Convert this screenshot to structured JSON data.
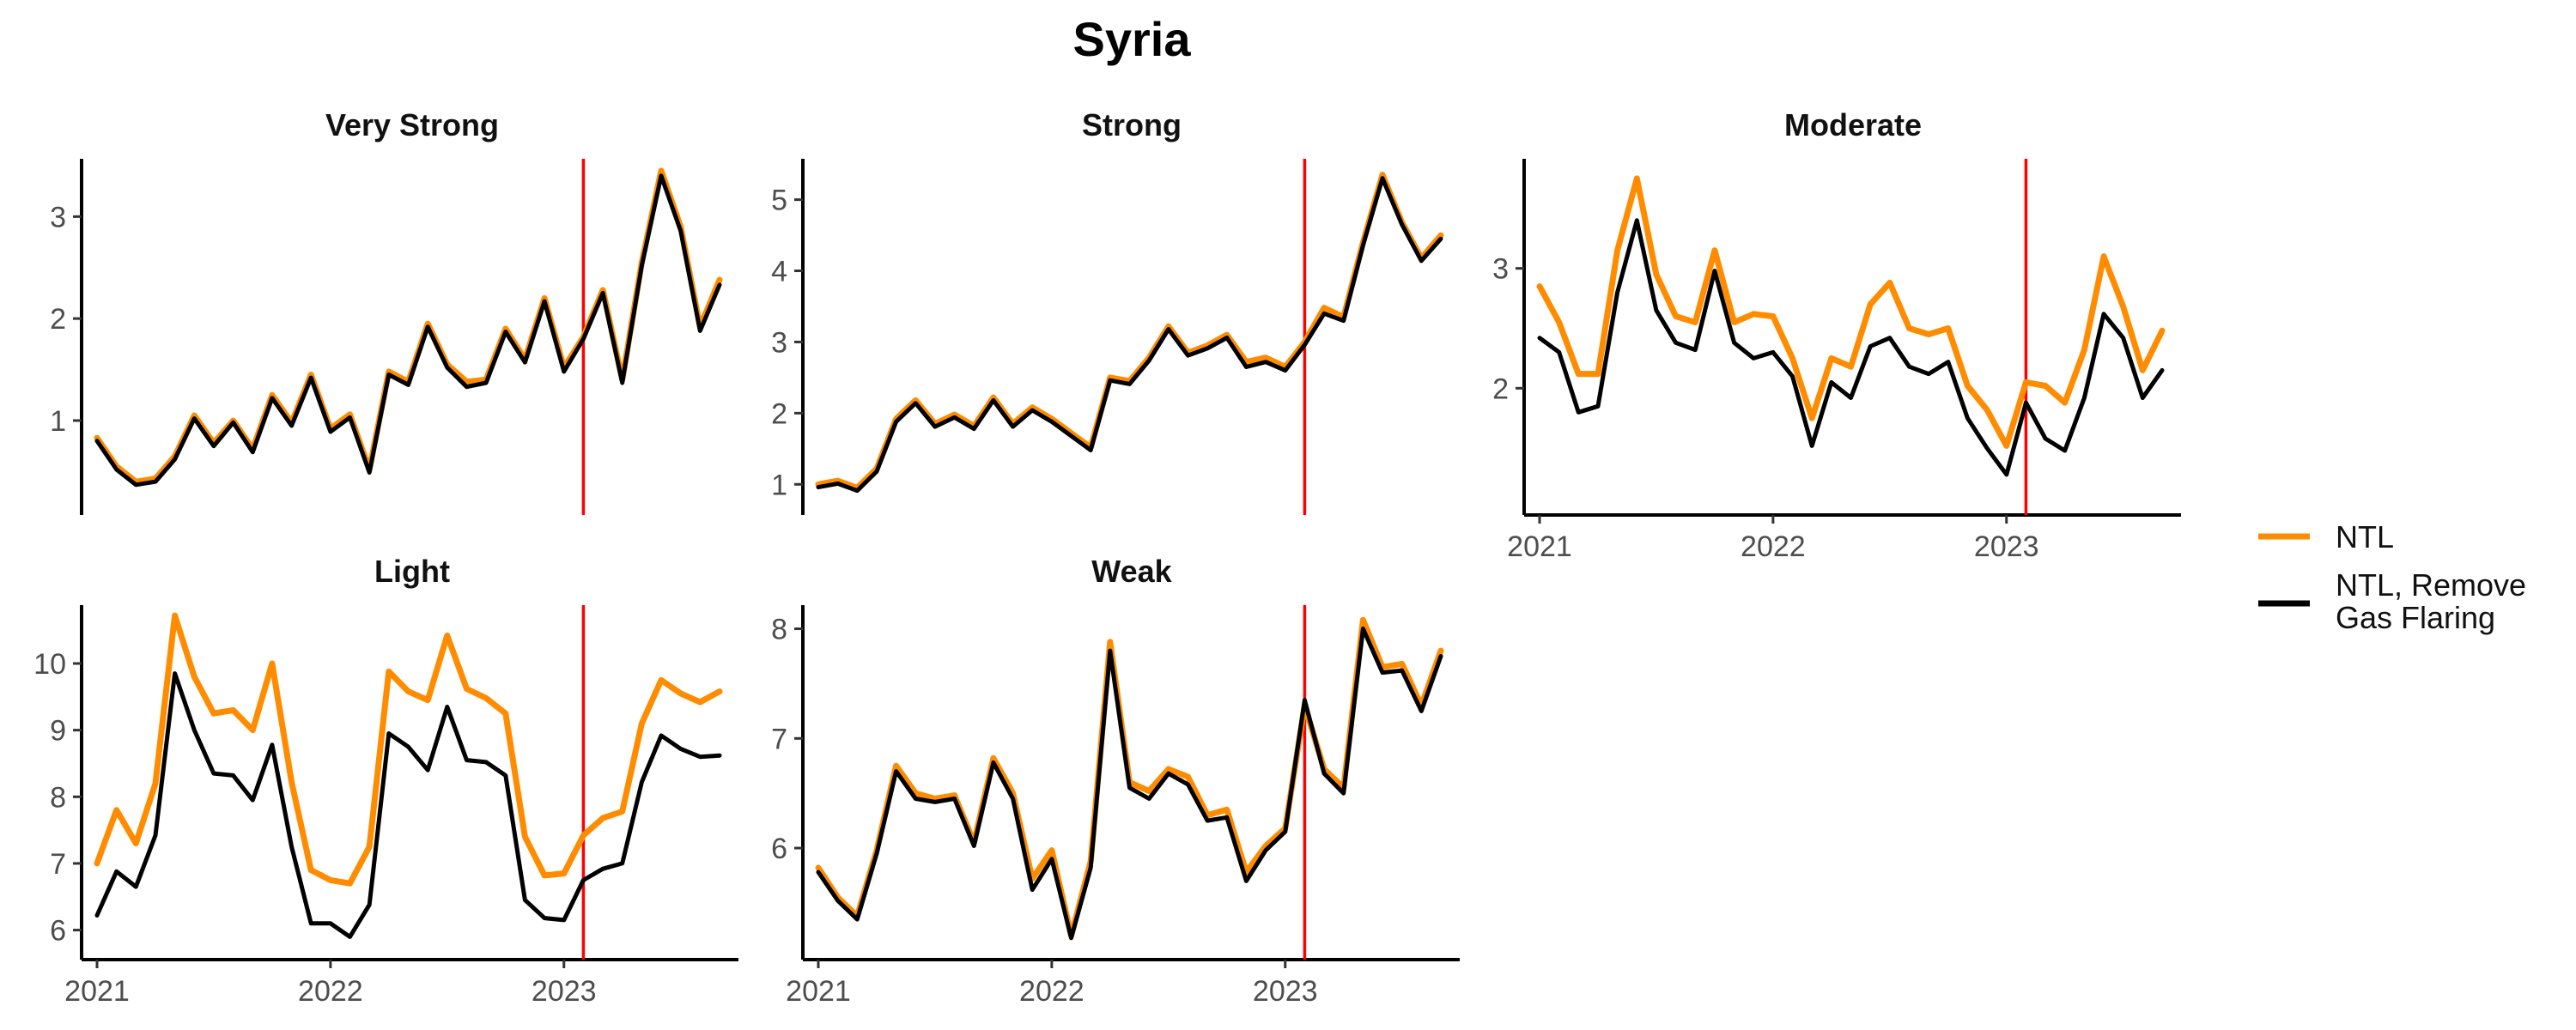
{
  "chart_data": {
    "title": "Syria",
    "type": "line",
    "facets": 5,
    "legend": {
      "position": "right",
      "entries": [
        {
          "label": "NTL",
          "color": "#FF8C00"
        },
        {
          "label_lines": [
            "NTL, Remove",
            "Gas Flaring"
          ],
          "color": "#000000"
        }
      ]
    },
    "reference_line": {
      "x": "2023-02",
      "color": "#FF0000"
    },
    "x": [
      "2021-01",
      "2021-02",
      "2021-03",
      "2021-04",
      "2021-05",
      "2021-06",
      "2021-07",
      "2021-08",
      "2021-09",
      "2021-10",
      "2021-11",
      "2021-12",
      "2022-01",
      "2022-02",
      "2022-03",
      "2022-04",
      "2022-05",
      "2022-06",
      "2022-07",
      "2022-08",
      "2022-09",
      "2022-10",
      "2022-11",
      "2022-12",
      "2023-01",
      "2023-02",
      "2023-03",
      "2023-04",
      "2023-05",
      "2023-06",
      "2023-07",
      "2023-08",
      "2023-09"
    ],
    "xticks": [
      "2021",
      "2022",
      "2023"
    ],
    "panels": [
      {
        "title": "Very Strong",
        "ylim": [
          0.2,
          3.55
        ],
        "yticks": [
          "1",
          "2",
          "3"
        ],
        "series": [
          {
            "name": "NTL",
            "color": "#FF8C00",
            "values": [
              0.83,
              0.55,
              0.4,
              0.43,
              0.65,
              1.05,
              0.78,
              1.0,
              0.72,
              1.25,
              0.98,
              1.45,
              0.92,
              1.06,
              0.52,
              1.48,
              1.38,
              1.95,
              1.55,
              1.38,
              1.4,
              1.9,
              1.6,
              2.2,
              1.52,
              1.82,
              2.28,
              1.4,
              2.55,
              3.45,
              2.9,
              1.92,
              2.38
            ]
          },
          {
            "name": "NTL, Remove Gas Flaring",
            "color": "#000000",
            "values": [
              0.8,
              0.52,
              0.37,
              0.4,
              0.62,
              1.02,
              0.75,
              0.98,
              0.69,
              1.22,
              0.95,
              1.42,
              0.89,
              1.03,
              0.49,
              1.45,
              1.35,
              1.92,
              1.52,
              1.33,
              1.37,
              1.87,
              1.57,
              2.17,
              1.48,
              1.8,
              2.25,
              1.37,
              2.52,
              3.4,
              2.86,
              1.88,
              2.33
            ]
          }
        ]
      },
      {
        "title": "Strong",
        "ylim": [
          0.75,
          5.55
        ],
        "yticks": [
          "1",
          "2",
          "3",
          "4",
          "5"
        ],
        "series": [
          {
            "name": "NTL",
            "color": "#FF8C00",
            "values": [
              1.0,
              1.05,
              0.95,
              1.22,
              1.92,
              2.18,
              1.85,
              1.98,
              1.82,
              2.22,
              1.85,
              2.08,
              1.92,
              1.72,
              1.52,
              2.5,
              2.45,
              2.78,
              3.22,
              2.85,
              2.95,
              3.1,
              2.72,
              2.78,
              2.65,
              3.0,
              3.48,
              3.35,
              4.4,
              5.35,
              4.68,
              4.18,
              4.5
            ]
          },
          {
            "name": "NTL, Remove Gas Flaring",
            "color": "#000000",
            "values": [
              0.96,
              1.01,
              0.91,
              1.18,
              1.88,
              2.14,
              1.81,
              1.94,
              1.78,
              2.18,
              1.81,
              2.04,
              1.88,
              1.68,
              1.48,
              2.46,
              2.41,
              2.74,
              3.18,
              2.81,
              2.91,
              3.06,
              2.65,
              2.72,
              2.6,
              2.96,
              3.4,
              3.3,
              4.36,
              5.3,
              4.65,
              4.14,
              4.45
            ]
          }
        ]
      },
      {
        "title": "Moderate",
        "ylim": [
          1.05,
          3.9
        ],
        "yticks": [
          "2",
          "3"
        ],
        "series": [
          {
            "name": "NTL",
            "color": "#FF8C00",
            "values": [
              2.85,
              2.55,
              2.12,
              2.12,
              3.15,
              3.75,
              2.95,
              2.6,
              2.55,
              3.15,
              2.55,
              2.62,
              2.6,
              2.25,
              1.75,
              2.25,
              2.18,
              2.7,
              2.88,
              2.5,
              2.45,
              2.5,
              2.02,
              1.82,
              1.52,
              2.05,
              2.02,
              1.88,
              2.32,
              3.1,
              2.68,
              2.15,
              2.48
            ]
          },
          {
            "name": "NTL, Remove Gas Flaring",
            "color": "#000000",
            "values": [
              2.42,
              2.3,
              1.8,
              1.85,
              2.8,
              3.4,
              2.65,
              2.38,
              2.32,
              2.98,
              2.38,
              2.25,
              2.3,
              2.1,
              1.52,
              2.05,
              1.92,
              2.35,
              2.42,
              2.18,
              2.12,
              2.22,
              1.75,
              1.5,
              1.28,
              1.88,
              1.58,
              1.48,
              1.92,
              2.62,
              2.42,
              1.92,
              2.15
            ]
          }
        ]
      },
      {
        "title": "Light",
        "ylim": [
          5.75,
          10.85
        ],
        "yticks": [
          "6",
          "7",
          "8",
          "9",
          "10"
        ],
        "series": [
          {
            "name": "NTL",
            "color": "#FF8C00",
            "values": [
              7.0,
              7.8,
              7.3,
              8.2,
              10.72,
              9.8,
              9.25,
              9.3,
              9.0,
              10.0,
              8.22,
              6.9,
              6.75,
              6.7,
              7.25,
              9.88,
              9.58,
              9.45,
              10.42,
              9.62,
              9.48,
              9.25,
              7.4,
              6.82,
              6.85,
              7.42,
              7.68,
              7.78,
              9.1,
              9.75,
              9.55,
              9.42,
              9.58
            ]
          },
          {
            "name": "NTL, Remove Gas Flaring",
            "color": "#000000",
            "values": [
              6.22,
              6.88,
              6.65,
              7.42,
              9.85,
              9.0,
              8.35,
              8.32,
              7.95,
              8.78,
              7.25,
              6.1,
              6.1,
              5.9,
              6.38,
              8.95,
              8.75,
              8.4,
              9.35,
              8.55,
              8.52,
              8.32,
              6.45,
              6.18,
              6.15,
              6.75,
              6.92,
              7.0,
              8.22,
              8.92,
              8.72,
              8.6,
              8.62
            ]
          }
        ]
      },
      {
        "title": "Weak",
        "ylim": [
          5.1,
          8.2
        ],
        "yticks": [
          "6",
          "7",
          "8"
        ],
        "series": [
          {
            "name": "NTL",
            "color": "#FF8C00",
            "values": [
              5.82,
              5.55,
              5.38,
              5.98,
              6.75,
              6.5,
              6.45,
              6.48,
              6.05,
              6.82,
              6.5,
              5.72,
              5.98,
              5.2,
              5.88,
              7.88,
              6.6,
              6.52,
              6.72,
              6.65,
              6.3,
              6.35,
              5.78,
              6.02,
              6.18,
              7.3,
              6.72,
              6.55,
              8.08,
              7.65,
              7.68,
              7.3,
              7.8
            ]
          },
          {
            "name": "NTL, Remove Gas Flaring",
            "color": "#000000",
            "values": [
              5.78,
              5.52,
              5.35,
              5.95,
              6.7,
              6.45,
              6.42,
              6.45,
              6.02,
              6.78,
              6.45,
              5.62,
              5.9,
              5.18,
              5.82,
              7.8,
              6.55,
              6.45,
              6.68,
              6.58,
              6.25,
              6.28,
              5.7,
              5.98,
              6.15,
              7.35,
              6.68,
              6.5,
              8.0,
              7.6,
              7.62,
              7.25,
              7.75
            ]
          }
        ]
      }
    ]
  }
}
